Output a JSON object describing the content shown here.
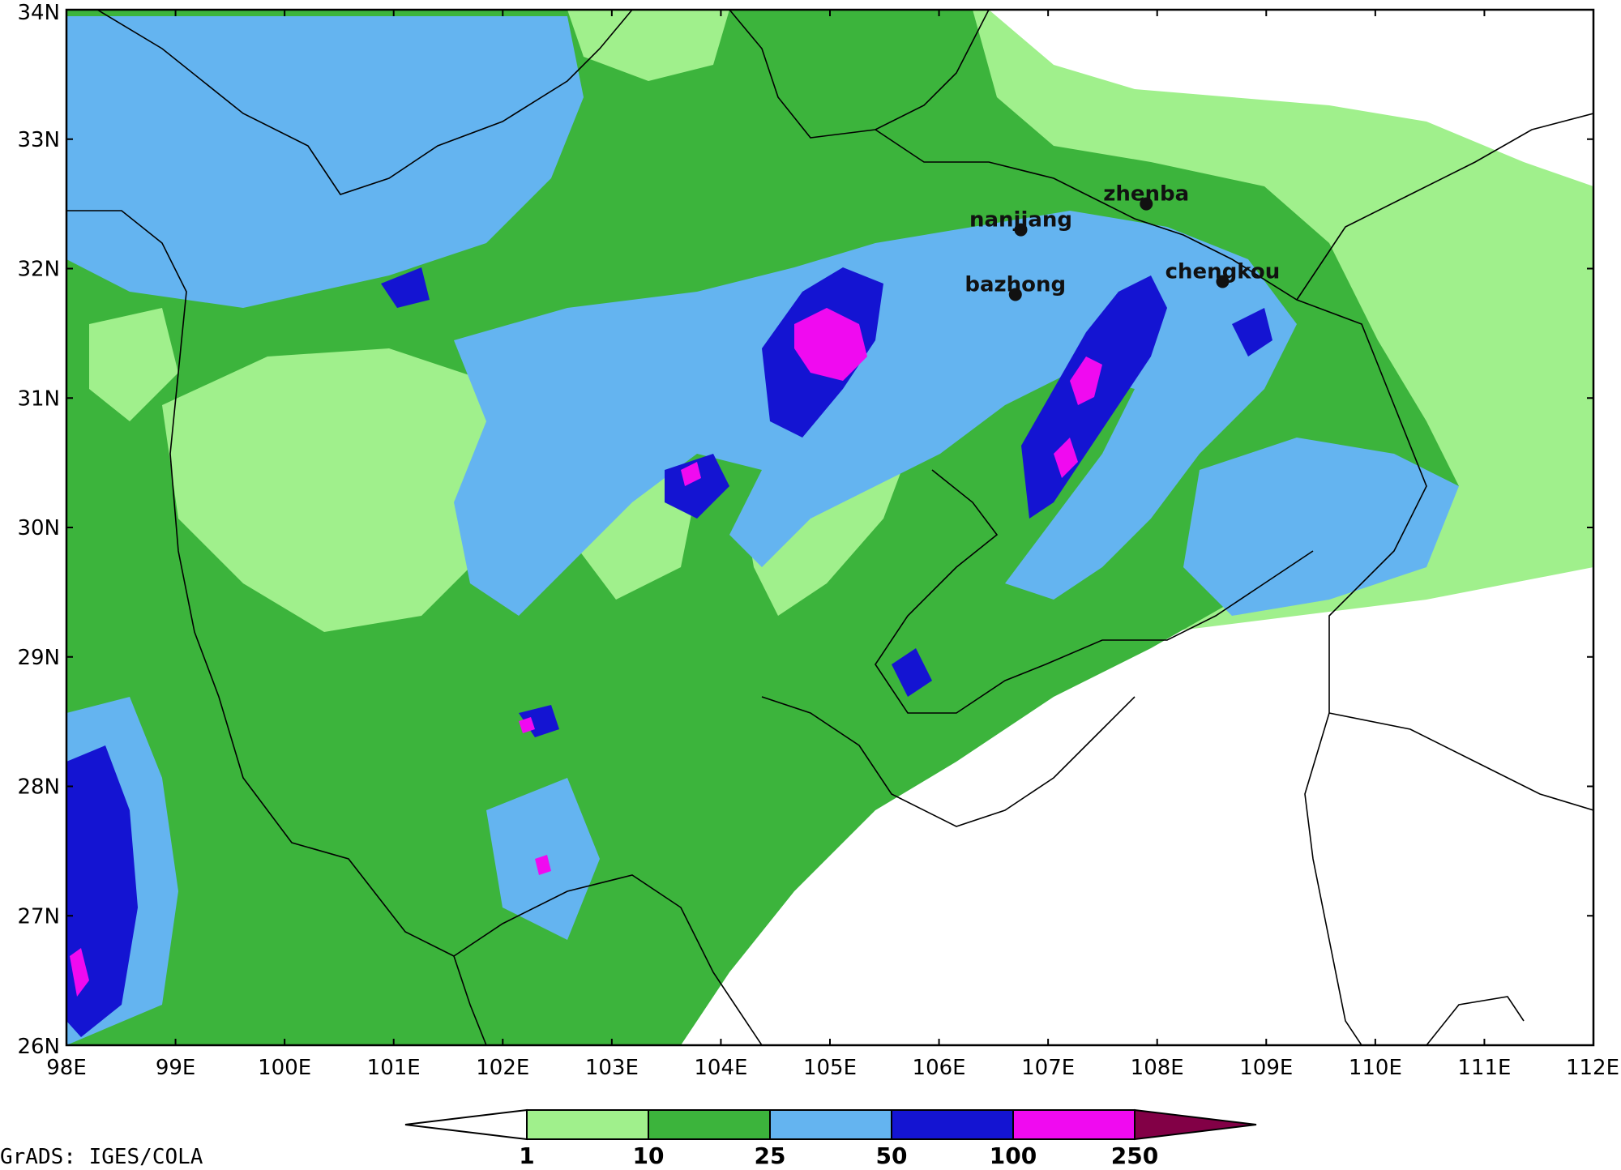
{
  "map": {
    "lon_labels": [
      "98E",
      "99E",
      "100E",
      "101E",
      "102E",
      "103E",
      "104E",
      "105E",
      "106E",
      "107E",
      "108E",
      "109E",
      "110E",
      "111E",
      "112E"
    ],
    "lat_labels": [
      "26N",
      "27N",
      "28N",
      "29N",
      "30N",
      "31N",
      "32N",
      "33N",
      "34N"
    ],
    "lon_range": [
      98,
      112
    ],
    "lat_range": [
      26,
      34
    ],
    "stations": [
      {
        "name": "zhenba",
        "lon": 107.9,
        "lat": 32.5
      },
      {
        "name": "nanjiang",
        "lon": 106.75,
        "lat": 32.3
      },
      {
        "name": "bazhong",
        "lon": 106.7,
        "lat": 31.8
      },
      {
        "name": "chengkou",
        "lon": 108.6,
        "lat": 31.9
      }
    ]
  },
  "colorbar": {
    "levels": [
      "1",
      "10",
      "25",
      "50",
      "100",
      "250"
    ],
    "colors": [
      "#ffffff",
      "#a0f08c",
      "#3cb43c",
      "#64b4f0",
      "#1414d2",
      "#f00af0",
      "#820046"
    ]
  },
  "credit": "GrADS: IGES/COLA"
}
